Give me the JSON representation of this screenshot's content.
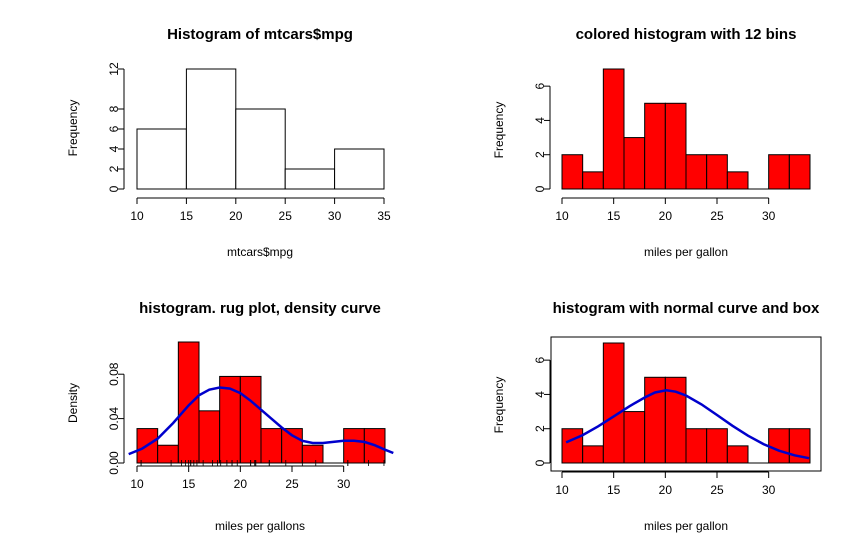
{
  "chart_data": [
    {
      "type": "bar",
      "title": "Histogram of mtcars$mpg",
      "xlabel": "mtcars$mpg",
      "ylabel": "Frequency",
      "xlim": [
        10,
        35
      ],
      "ylim": [
        0,
        12
      ],
      "bin_edges": [
        10,
        15,
        20,
        25,
        30,
        35
      ],
      "values": [
        6,
        12,
        8,
        2,
        4
      ],
      "fill": "#ffffff",
      "xticks": [
        10,
        15,
        20,
        25,
        30,
        35
      ],
      "yticks": [
        0,
        2,
        4,
        6,
        8,
        12
      ]
    },
    {
      "type": "bar",
      "title": "colored histogram with 12 bins",
      "xlabel": "miles per gallon",
      "ylabel": "Frequency",
      "xlim": [
        10,
        34
      ],
      "ylim": [
        0,
        7
      ],
      "bin_edges": [
        10,
        12,
        14,
        16,
        18,
        20,
        22,
        24,
        26,
        28,
        30,
        32,
        34
      ],
      "values": [
        2,
        1,
        7,
        3,
        5,
        5,
        2,
        2,
        1,
        0,
        2,
        2
      ],
      "fill": "#ff0000",
      "xticks": [
        10,
        15,
        20,
        25,
        30
      ],
      "yticks": [
        0,
        2,
        4,
        6
      ]
    },
    {
      "type": "bar",
      "title": "histogram. rug plot, density curve",
      "xlabel": "miles per gallons",
      "ylabel": "Density",
      "xlim": [
        10,
        34
      ],
      "ylim": [
        0,
        0.1
      ],
      "bin_edges": [
        10,
        12,
        14,
        16,
        18,
        20,
        22,
        24,
        26,
        28,
        30,
        32,
        34
      ],
      "values": [
        0.031,
        0.016,
        0.109,
        0.047,
        0.078,
        0.078,
        0.031,
        0.031,
        0.016,
        0.0,
        0.031,
        0.031
      ],
      "fill": "#ff0000",
      "xticks": [
        10,
        15,
        20,
        25,
        30
      ],
      "yticks": [
        0.0,
        0.04,
        0.08
      ],
      "ytick_labels": [
        "0.00",
        "0.04",
        "0.08"
      ],
      "curve": {
        "name": "density",
        "color": "#0000cc",
        "x": [
          9.2,
          10.5,
          12,
          13.5,
          15,
          16,
          17,
          18,
          19,
          20,
          21,
          22,
          23,
          24,
          25,
          26,
          27,
          28,
          29,
          30,
          31,
          32,
          33,
          34,
          34.8
        ],
        "y": [
          0.008,
          0.013,
          0.022,
          0.036,
          0.052,
          0.061,
          0.066,
          0.068,
          0.067,
          0.063,
          0.056,
          0.048,
          0.04,
          0.032,
          0.025,
          0.02,
          0.018,
          0.018,
          0.019,
          0.02,
          0.02,
          0.019,
          0.016,
          0.012,
          0.009
        ]
      },
      "rug": [
        10.4,
        10.4,
        13.3,
        14.3,
        14.7,
        15,
        15.2,
        15.2,
        15.5,
        15.8,
        16.4,
        17.3,
        17.8,
        18.1,
        18.7,
        19.2,
        19.2,
        19.7,
        21,
        21,
        21.4,
        21.4,
        21.5,
        22.8,
        22.8,
        24.4,
        26,
        27.3,
        30.4,
        30.4,
        32.4,
        33.9
      ]
    },
    {
      "type": "bar",
      "title": "histogram with normal curve and box",
      "xlabel": "miles per gallon",
      "ylabel": "Frequency",
      "xlim": [
        10,
        34
      ],
      "ylim": [
        0,
        7
      ],
      "bin_edges": [
        10,
        12,
        14,
        16,
        18,
        20,
        22,
        24,
        26,
        28,
        30,
        32,
        34
      ],
      "values": [
        2,
        1,
        7,
        3,
        5,
        5,
        2,
        2,
        1,
        0,
        2,
        2
      ],
      "fill": "#ff0000",
      "xticks": [
        10,
        15,
        20,
        25,
        30
      ],
      "yticks": [
        0,
        2,
        4,
        6
      ],
      "curve": {
        "name": "normal",
        "color": "#0000cc",
        "x": [
          10.4,
          12,
          13.5,
          15,
          16.5,
          18,
          19,
          20.09,
          21,
          22,
          23.5,
          25,
          26.5,
          28,
          29.5,
          31,
          32.5,
          33.9
        ],
        "y": [
          1.2,
          1.63,
          2.14,
          2.72,
          3.3,
          3.82,
          4.11,
          4.24,
          4.16,
          3.94,
          3.42,
          2.8,
          2.17,
          1.59,
          1.1,
          0.72,
          0.45,
          0.28
        ]
      },
      "box": true
    }
  ]
}
